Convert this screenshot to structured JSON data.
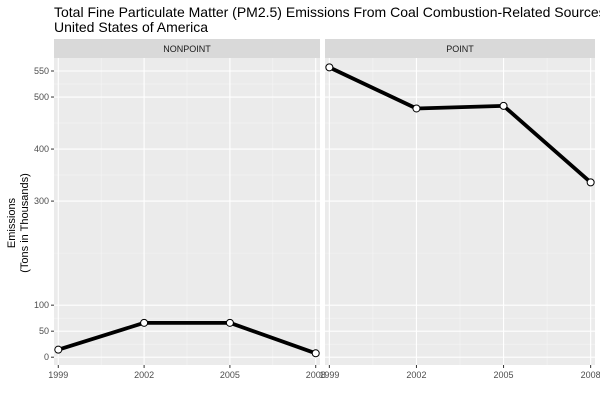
{
  "page": {
    "title_line1": "Total Fine Particulate Matter (PM2.5) Emissions From Coal Combustion-Related Sources",
    "title_line2": "United States of America"
  },
  "chart_data": {
    "type": "line",
    "title": "Total Fine Particulate Matter (PM2.5) Emissions From Coal Combustion-Related Sources",
    "subtitle": "United States of America",
    "ylabel_line1": "Emissions",
    "ylabel_line2": "(Tons in Thousands)",
    "xlabel": "",
    "x": [
      1999,
      2002,
      2005,
      2008
    ],
    "x_ticks": [
      "1999",
      "2002",
      "2005",
      "2008"
    ],
    "y_ticks": [
      0,
      50,
      100,
      300,
      400,
      500,
      550
    ],
    "y_tick_labels": [
      "0",
      "50",
      "100",
      "300",
      "400",
      "500",
      "550"
    ],
    "ylim": [
      -15,
      575
    ],
    "xlim": [
      1998.85,
      2008.15
    ],
    "grid": true,
    "panel_background": "#ebebeb",
    "strip_background": "#d9d9d9",
    "line_color": "#000000",
    "point_fill": "#ffffff",
    "panels": [
      {
        "label": "NONPOINT",
        "values": [
          14.5,
          66,
          66,
          7.5
        ]
      },
      {
        "label": "POINT",
        "values": [
          557,
          478,
          483,
          336
        ]
      }
    ]
  }
}
